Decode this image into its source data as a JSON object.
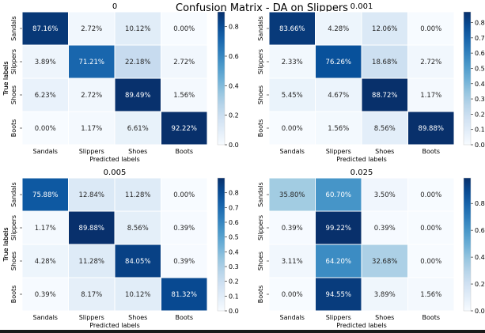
{
  "figure": {
    "title": "Confusion Matrix - DA on Slippers",
    "xlabel": "Predicted labels",
    "ylabel": "True labels",
    "colormap": {
      "low": "#f7fbff",
      "high": "#08306b"
    }
  },
  "chart_data": [
    {
      "type": "heatmap",
      "title": "0",
      "categories": [
        "Sandals",
        "Slippers",
        "Shoes",
        "Boots"
      ],
      "xlabel": "Predicted labels",
      "ylabel": "True labels",
      "values": [
        [
          87.16,
          2.72,
          10.12,
          0.0
        ],
        [
          3.89,
          71.21,
          22.18,
          2.72
        ],
        [
          6.23,
          2.72,
          89.49,
          1.56
        ],
        [
          0.0,
          1.17,
          6.61,
          92.22
        ]
      ],
      "cell_labels": [
        [
          "87.16%",
          "2.72%",
          "10.12%",
          "0.00%"
        ],
        [
          "3.89%",
          "71.21%",
          "22.18%",
          "2.72%"
        ],
        [
          "6.23%",
          "2.72%",
          "89.49%",
          "1.56%"
        ],
        [
          "0.00%",
          "1.17%",
          "6.61%",
          "92.22%"
        ]
      ],
      "colorbar": {
        "vmin": 0.0,
        "vmax": 0.9,
        "ticks": [
          0.0,
          0.2,
          0.4,
          0.6,
          0.8
        ],
        "tick_labels": [
          "0.0",
          "0.2",
          "0.4",
          "0.6",
          "0.8"
        ]
      }
    },
    {
      "type": "heatmap",
      "title": "0.001",
      "categories": [
        "Sandals",
        "Slippers",
        "Shoes",
        "Boots"
      ],
      "xlabel": "Predicted labels",
      "ylabel": "True labels",
      "values": [
        [
          83.66,
          4.28,
          12.06,
          0.0
        ],
        [
          2.33,
          76.26,
          18.68,
          2.72
        ],
        [
          5.45,
          4.67,
          88.72,
          1.17
        ],
        [
          0.0,
          1.56,
          8.56,
          89.88
        ]
      ],
      "cell_labels": [
        [
          "83.66%",
          "4.28%",
          "12.06%",
          "0.00%"
        ],
        [
          "2.33%",
          "76.26%",
          "18.68%",
          "2.72%"
        ],
        [
          "5.45%",
          "4.67%",
          "88.72%",
          "1.17%"
        ],
        [
          "0.00%",
          "1.56%",
          "8.56%",
          "89.88%"
        ]
      ],
      "colorbar": {
        "vmin": 0.0,
        "vmax": 0.87,
        "ticks": [
          0.0,
          0.1,
          0.2,
          0.3,
          0.4,
          0.5,
          0.6,
          0.7,
          0.8
        ],
        "tick_labels": [
          "0.0",
          "0.1",
          "0.2",
          "0.3",
          "0.4",
          "0.5",
          "0.6",
          "0.7",
          "0.8"
        ]
      }
    },
    {
      "type": "heatmap",
      "title": "0.005",
      "categories": [
        "Sandals",
        "Slippers",
        "Shoes",
        "Boots"
      ],
      "xlabel": "Predicted labels",
      "ylabel": "True labels",
      "values": [
        [
          75.88,
          12.84,
          11.28,
          0.0
        ],
        [
          1.17,
          89.88,
          8.56,
          0.39
        ],
        [
          4.28,
          11.28,
          84.05,
          0.39
        ],
        [
          0.39,
          8.17,
          10.12,
          81.32
        ]
      ],
      "cell_labels": [
        [
          "75.88%",
          "12.84%",
          "11.28%",
          "0.00%"
        ],
        [
          "1.17%",
          "89.88%",
          "8.56%",
          "0.39%"
        ],
        [
          "4.28%",
          "11.28%",
          "84.05%",
          "0.39%"
        ],
        [
          "0.39%",
          "8.17%",
          "10.12%",
          "81.32%"
        ]
      ],
      "colorbar": {
        "vmin": 0.0,
        "vmax": 0.9,
        "ticks": [
          0.0,
          0.1,
          0.2,
          0.3,
          0.4,
          0.5,
          0.6,
          0.7,
          0.8
        ],
        "tick_labels": [
          "0.0",
          "0.1",
          "0.2",
          "0.3",
          "0.4",
          "0.5",
          "0.6",
          "0.7",
          "0.8"
        ]
      }
    },
    {
      "type": "heatmap",
      "title": "0.025",
      "categories": [
        "Sandals",
        "Slippers",
        "Shoes",
        "Boots"
      ],
      "xlabel": "Predicted labels",
      "ylabel": "True labels",
      "values": [
        [
          35.8,
          60.7,
          3.5,
          0.0
        ],
        [
          0.39,
          99.22,
          0.39,
          0.0
        ],
        [
          3.11,
          64.2,
          32.68,
          0.0
        ],
        [
          0.0,
          94.55,
          3.89,
          1.56
        ]
      ],
      "cell_labels": [
        [
          "35.80%",
          "60.70%",
          "3.50%",
          "0.00%"
        ],
        [
          "0.39%",
          "99.22%",
          "0.39%",
          "0.00%"
        ],
        [
          "3.11%",
          "64.20%",
          "32.68%",
          "0.00%"
        ],
        [
          "0.00%",
          "94.55%",
          "3.89%",
          "1.56%"
        ]
      ],
      "colorbar": {
        "vmin": 0.0,
        "vmax": 0.99,
        "ticks": [
          0.0,
          0.2,
          0.4,
          0.6,
          0.8
        ],
        "tick_labels": [
          "0.0",
          "0.2",
          "0.4",
          "0.6",
          "0.8"
        ]
      }
    }
  ]
}
